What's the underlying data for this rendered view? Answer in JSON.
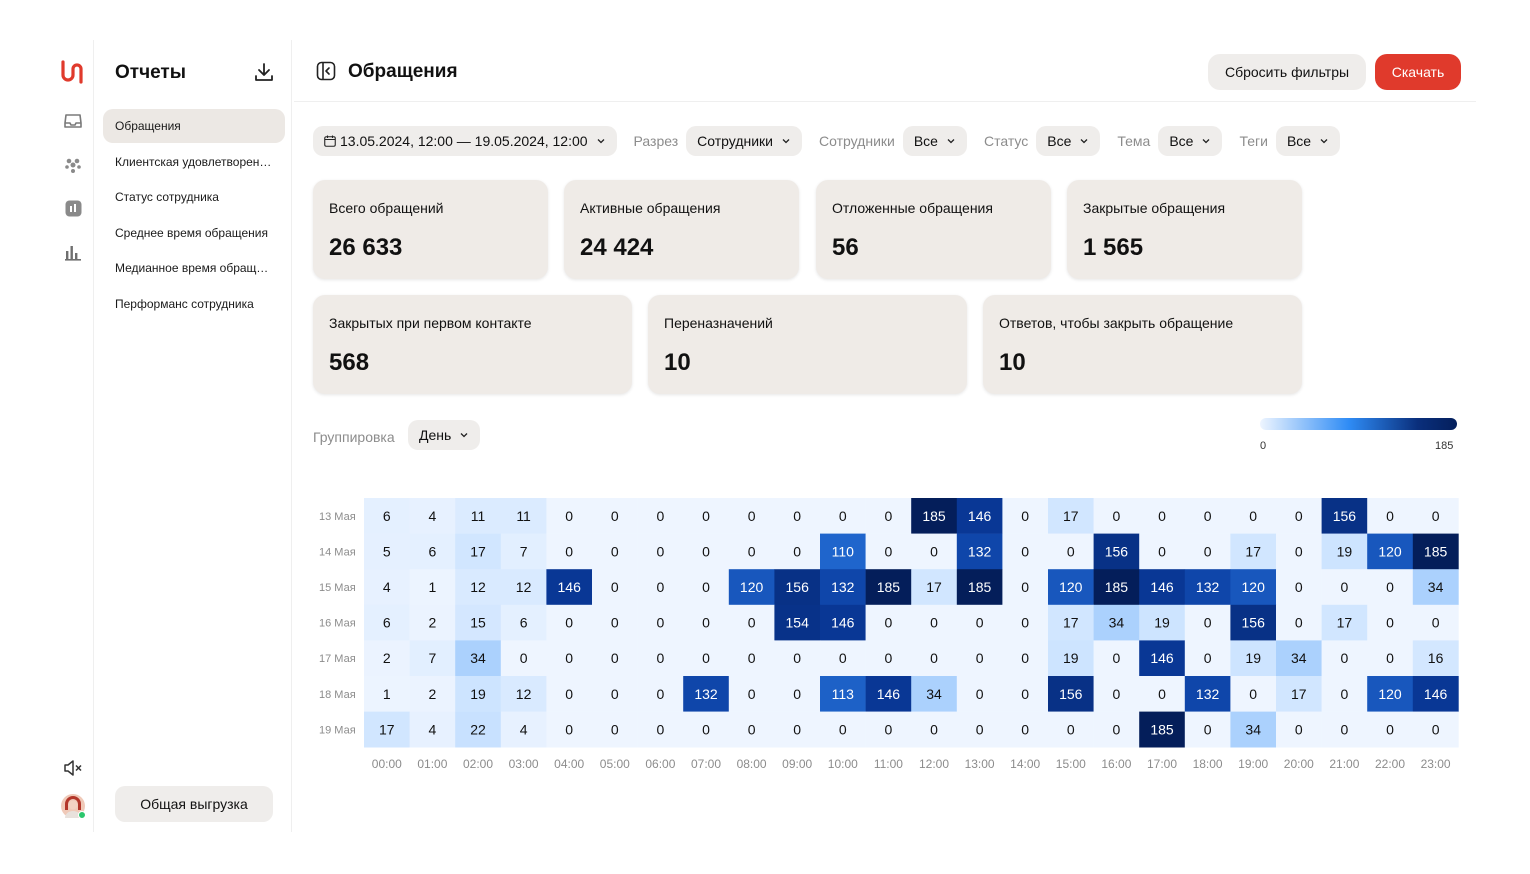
{
  "sidebar": {
    "title": "Отчеты",
    "items": [
      {
        "label": "Обращения",
        "active": true
      },
      {
        "label": "Клиентская удовлетворенность",
        "active": false
      },
      {
        "label": "Статус сотрудника",
        "active": false
      },
      {
        "label": "Среднее время обращения",
        "active": false
      },
      {
        "label": "Медианное время обращения",
        "active": false
      },
      {
        "label": "Перформанс сотрудника",
        "active": false
      }
    ],
    "export_all": "Общая выгрузка"
  },
  "rail_icons": [
    "inbox-icon",
    "team-icon",
    "report-icon",
    "bar-chart-icon",
    "mute-icon",
    "avatar"
  ],
  "header": {
    "title": "Обращения",
    "reset_filters": "Сбросить фильтры",
    "download": "Скачать"
  },
  "filters": {
    "date_range": "13.05.2024, 12:00 — 19.05.2024, 12:00",
    "slice": {
      "label": "Разрез",
      "value": "Сотрудники"
    },
    "employees": {
      "label": "Сотрудники",
      "value": "Все"
    },
    "status": {
      "label": "Статус",
      "value": "Все"
    },
    "topic": {
      "label": "Тема",
      "value": "Все"
    },
    "tags": {
      "label": "Теги",
      "value": "Все"
    }
  },
  "stats": [
    {
      "label": "Всего обращений",
      "value": "26 633"
    },
    {
      "label": "Активные обращения",
      "value": "24 424"
    },
    {
      "label": "Отложенные обращения",
      "value": "56"
    },
    {
      "label": "Закрытые обращения",
      "value": "1 565"
    },
    {
      "label": "Закрытых при первом контакте",
      "value": "568"
    },
    {
      "label": "Переназначений",
      "value": "10"
    },
    {
      "label": "Ответов, чтобы закрыть обращение",
      "value": "10"
    }
  ],
  "grouping": {
    "label": "Группировка",
    "value": "День"
  },
  "legend": {
    "min": "0",
    "max": "185"
  },
  "colors": {
    "accent": "#e03a2c",
    "heat_low": "#eef5ff",
    "heat_mid": "#2f8cf5",
    "heat_high": "#041f5c",
    "card_bg": "#efebe7"
  },
  "chart_data": {
    "type": "heatmap",
    "rows": [
      "13 Мая",
      "14 Мая",
      "15 Мая",
      "16 Мая",
      "17 Мая",
      "18 Мая",
      "19 Мая"
    ],
    "columns": [
      "00:00",
      "01:00",
      "02:00",
      "03:00",
      "04:00",
      "05:00",
      "06:00",
      "07:00",
      "08:00",
      "09:00",
      "10:00",
      "11:00",
      "12:00",
      "13:00",
      "14:00",
      "15:00",
      "16:00",
      "17:00",
      "18:00",
      "19:00",
      "20:00",
      "21:00",
      "22:00",
      "23:00"
    ],
    "values": [
      [
        6,
        4,
        11,
        11,
        0,
        0,
        0,
        0,
        0,
        0,
        0,
        0,
        185,
        146,
        0,
        17,
        0,
        0,
        0,
        0,
        0,
        156,
        0,
        0
      ],
      [
        5,
        6,
        17,
        7,
        0,
        0,
        0,
        0,
        0,
        0,
        110,
        0,
        0,
        132,
        0,
        0,
        156,
        0,
        0,
        17,
        0,
        19,
        120,
        185
      ],
      [
        4,
        1,
        12,
        12,
        146,
        0,
        0,
        0,
        120,
        156,
        132,
        185,
        17,
        185,
        0,
        120,
        185,
        146,
        132,
        120,
        0,
        0,
        0,
        34
      ],
      [
        6,
        2,
        15,
        6,
        0,
        0,
        0,
        0,
        0,
        154,
        146,
        0,
        0,
        0,
        0,
        17,
        34,
        19,
        0,
        156,
        0,
        17,
        0,
        0
      ],
      [
        2,
        7,
        34,
        0,
        0,
        0,
        0,
        0,
        0,
        0,
        0,
        0,
        0,
        0,
        0,
        19,
        0,
        146,
        0,
        19,
        34,
        0,
        0,
        16
      ],
      [
        1,
        2,
        19,
        12,
        0,
        0,
        0,
        132,
        0,
        0,
        113,
        146,
        34,
        0,
        0,
        156,
        0,
        0,
        132,
        0,
        17,
        0,
        120,
        146
      ],
      [
        17,
        4,
        22,
        4,
        0,
        0,
        0,
        0,
        0,
        0,
        0,
        0,
        0,
        0,
        0,
        0,
        0,
        185,
        0,
        34,
        0,
        0,
        0,
        0
      ]
    ],
    "min": 0,
    "max": 185
  }
}
